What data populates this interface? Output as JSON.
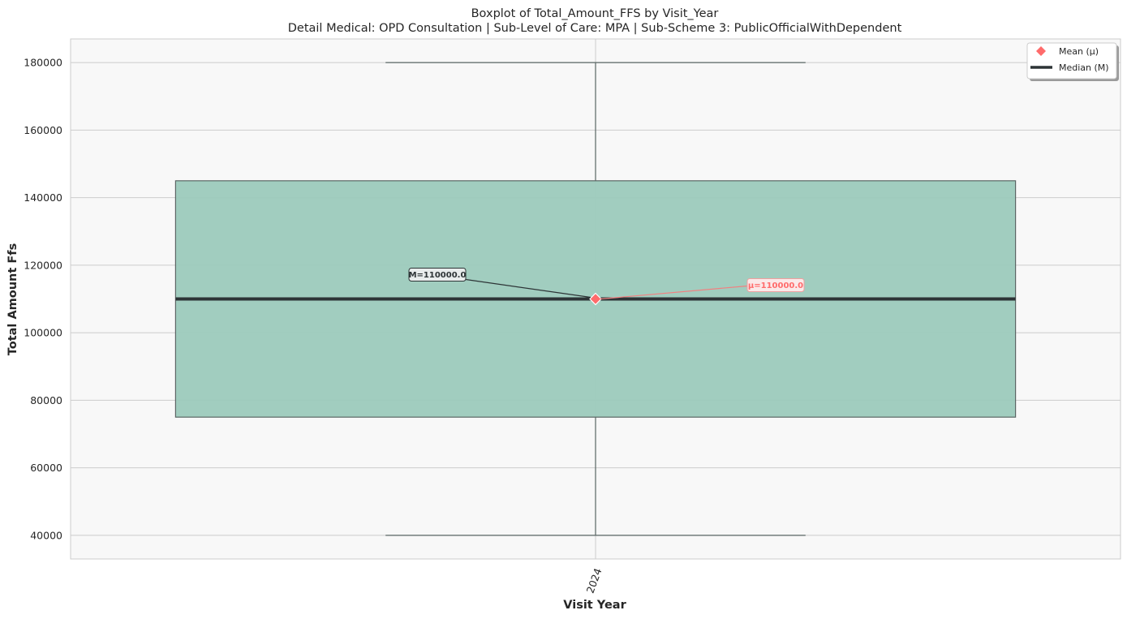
{
  "chart_data": {
    "type": "box",
    "title": "Boxplot of Total_Amount_FFS by Visit_Year",
    "subtitle": "Detail Medical: OPD Consultation | Sub-Level of Care: MPA | Sub-Scheme 3: PublicOfficialWithDependent",
    "xlabel": "Visit Year",
    "ylabel": "Total Amount Ffs",
    "categories": [
      "2024"
    ],
    "ylim": [
      33000,
      187000
    ],
    "yticks": [
      40000,
      60000,
      80000,
      100000,
      120000,
      140000,
      160000,
      180000
    ],
    "grid": true,
    "legend_position": "top-right",
    "boxes": [
      {
        "category": "2024",
        "whisker_low": 40000,
        "q1": 75000,
        "median": 110000,
        "q3": 145000,
        "whisker_high": 180000,
        "mean": 110000
      }
    ],
    "legend": [
      {
        "label": "Mean (μ)",
        "marker": "diamond",
        "color": "#ff6b6b"
      },
      {
        "label": "Median (M)",
        "marker": "line",
        "color": "#2d3436"
      }
    ],
    "annotations": {
      "median_label": "M=110000.0",
      "mean_label": "μ=110000.0"
    },
    "colors": {
      "box_fill": "#9ccabc",
      "box_edge": "#5a6664",
      "median_line": "#2d3436",
      "mean_marker": "#ff6b6b",
      "plot_bg": "#f8f8f8",
      "grid": "#cccccc"
    }
  }
}
